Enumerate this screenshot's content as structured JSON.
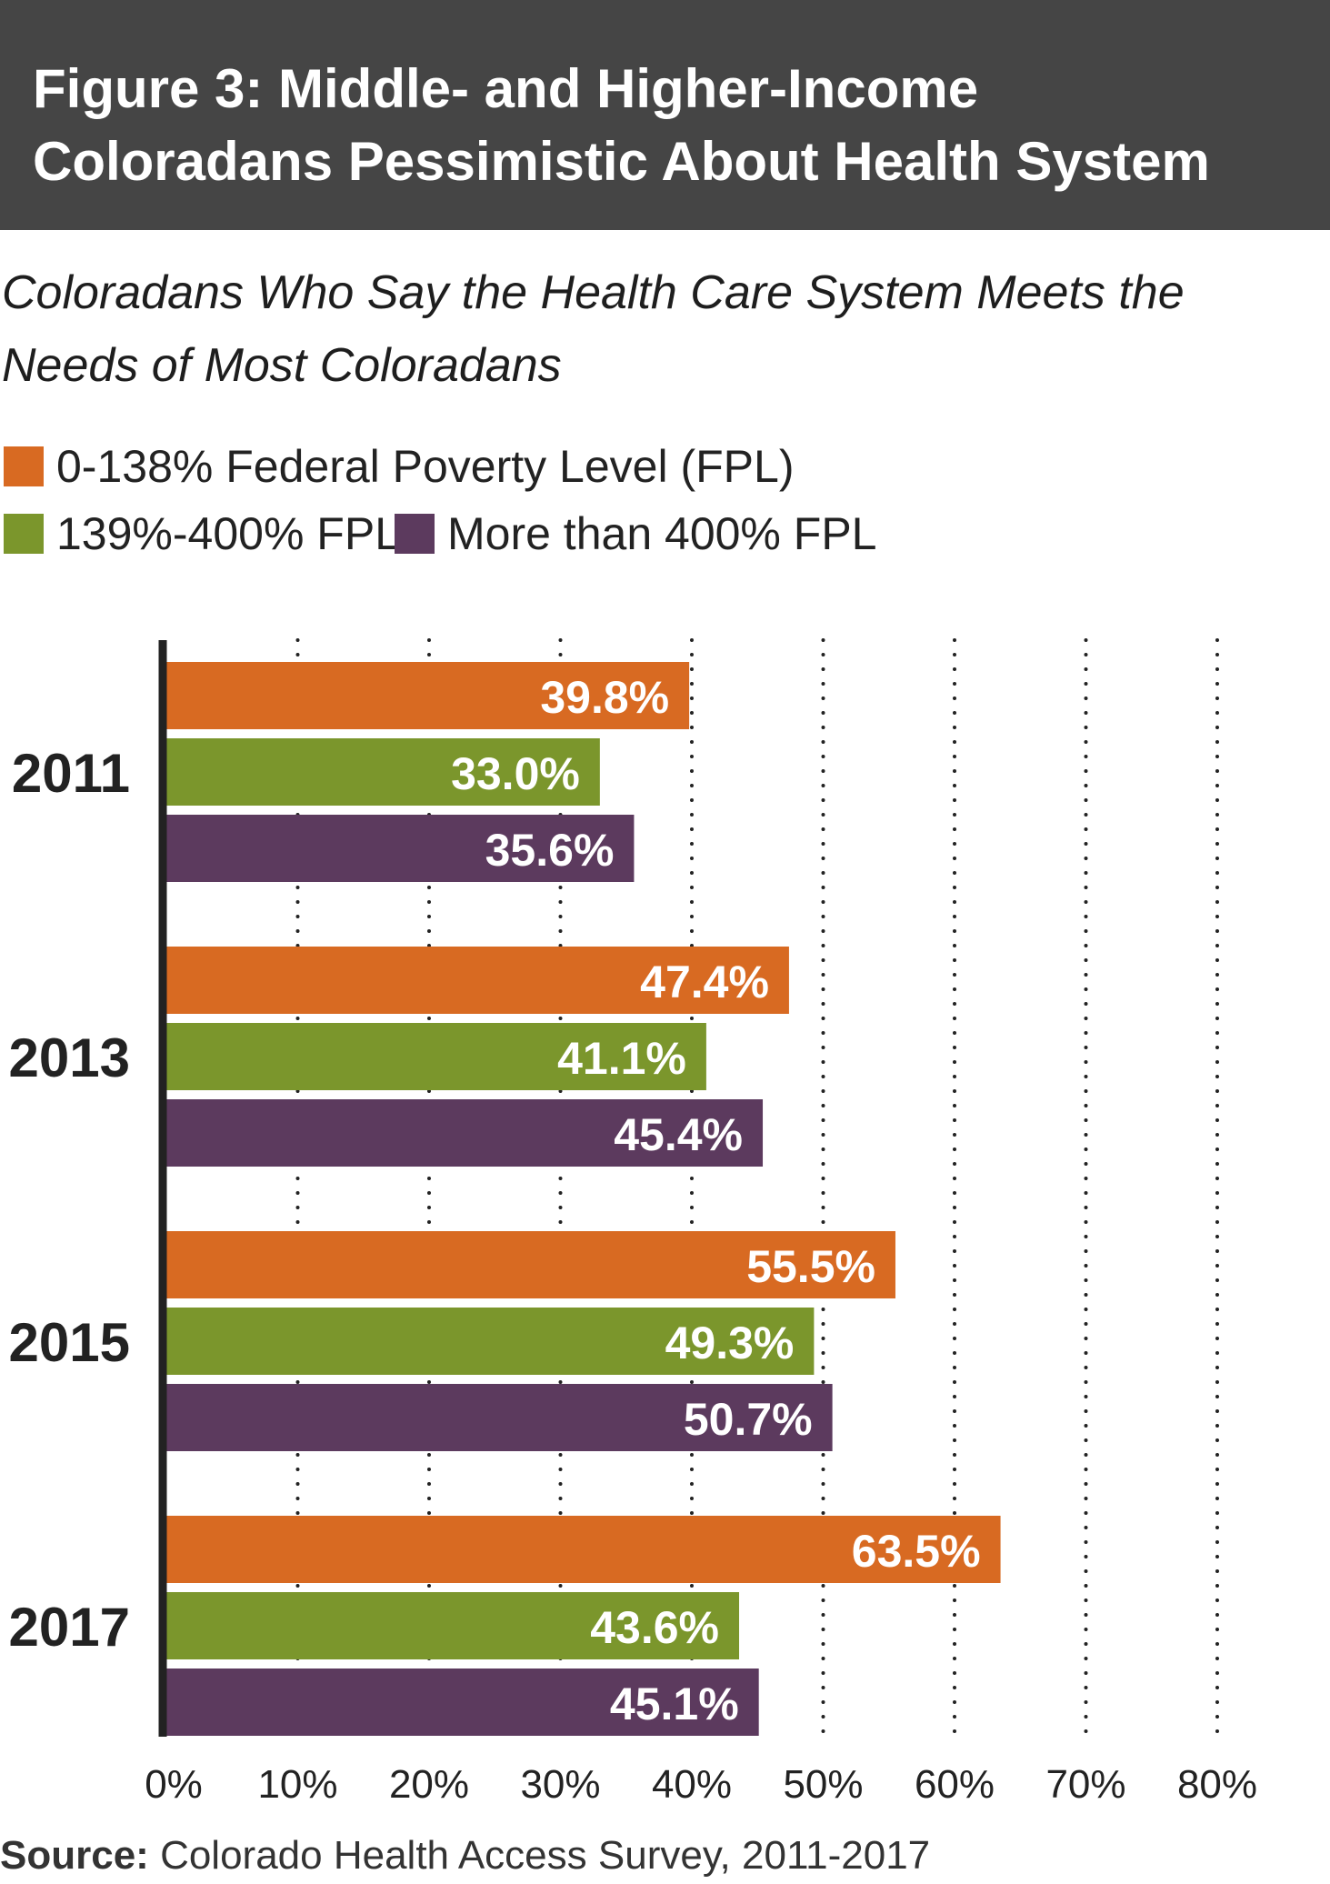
{
  "header": {
    "title_line1": "Figure 3: Middle- and Higher-Income",
    "title_line2": "Coloradans Pessimistic About Health System"
  },
  "subtitle": {
    "line1": "Coloradans Who Say the Health Care System Meets the",
    "line2": "Needs of Most Coloradans"
  },
  "source": {
    "label": "Source:",
    "text": "Colorado Health Access Survey, 2011-2017"
  },
  "colors": {
    "header_bg": "#454545",
    "orange": "#D86A22",
    "green": "#7B962C",
    "purple": "#5C3A5E"
  },
  "chart_data": {
    "type": "bar",
    "orientation": "horizontal",
    "title": "Figure 3: Middle- and Higher-Income Coloradans Pessimistic About Health System",
    "subtitle": "Coloradans Who Say the Health Care System Meets the Needs of Most Coloradans",
    "xlabel": "",
    "ylabel": "",
    "xlim": [
      0,
      80
    ],
    "x_ticks": [
      "0%",
      "10%",
      "20%",
      "30%",
      "40%",
      "50%",
      "60%",
      "70%",
      "80%"
    ],
    "grid": "vertical dotted",
    "legend_position": "top-left",
    "categories": [
      "2011",
      "2013",
      "2015",
      "2017"
    ],
    "series": [
      {
        "name": "0-138% Federal Poverty Level (FPL)",
        "color": "#D86A22",
        "values": [
          39.8,
          47.4,
          55.5,
          63.5
        ],
        "labels": [
          "39.8%",
          "47.4%",
          "55.5%",
          "63.5%"
        ]
      },
      {
        "name": "139%-400% FPL",
        "color": "#7B962C",
        "values": [
          33.0,
          41.1,
          49.3,
          43.6
        ],
        "labels": [
          "33.0%",
          "41.1%",
          "49.3%",
          "43.6%"
        ]
      },
      {
        "name": "More than 400% FPL",
        "color": "#5C3A5E",
        "values": [
          35.6,
          45.4,
          50.7,
          45.1
        ],
        "labels": [
          "35.6%",
          "45.4%",
          "50.7%",
          "45.1%"
        ]
      }
    ]
  }
}
